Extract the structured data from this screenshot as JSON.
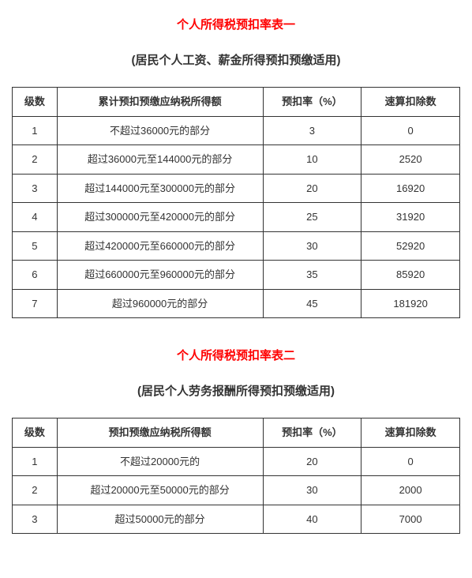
{
  "table1": {
    "title": "个人所得税预扣率表一",
    "title_color": "#ff0000",
    "title_fontsize": 15,
    "subtitle": "(居民个人工资、薪金所得预扣预缴适用)",
    "subtitle_color": "#333333",
    "subtitle_fontsize": 15,
    "columns": [
      "级数",
      "累计预扣预缴应纳税所得额",
      "预扣率（%）",
      "速算扣除数"
    ],
    "rows": [
      [
        "1",
        "不超过36000元的部分",
        "3",
        "0"
      ],
      [
        "2",
        "超过36000元至144000元的部分",
        "10",
        "2520"
      ],
      [
        "3",
        "超过144000元至300000元的部分",
        "20",
        "16920"
      ],
      [
        "4",
        "超过300000元至420000元的部分",
        "25",
        "31920"
      ],
      [
        "5",
        "超过420000元至660000元的部分",
        "30",
        "52920"
      ],
      [
        "6",
        "超过660000元至960000元的部分",
        "35",
        "85920"
      ],
      [
        "7",
        "超过960000元的部分",
        "45",
        "181920"
      ]
    ],
    "border_color": "#333333",
    "cell_fontsize": 13,
    "col_widths": [
      "10%",
      "46%",
      "22%",
      "22%"
    ]
  },
  "table2": {
    "title": "个人所得税预扣率表二",
    "title_color": "#ff0000",
    "title_fontsize": 15,
    "subtitle": "(居民个人劳务报酬所得预扣预缴适用)",
    "subtitle_color": "#333333",
    "subtitle_fontsize": 15,
    "columns": [
      "级数",
      "预扣预缴应纳税所得额",
      "预扣率（%）",
      "速算扣除数"
    ],
    "rows": [
      [
        "1",
        "不超过20000元的",
        "20",
        "0"
      ],
      [
        "2",
        "超过20000元至50000元的部分",
        "30",
        "2000"
      ],
      [
        "3",
        "超过50000元的部分",
        "40",
        "7000"
      ]
    ],
    "border_color": "#333333",
    "cell_fontsize": 13,
    "col_widths": [
      "10%",
      "46%",
      "22%",
      "22%"
    ]
  }
}
